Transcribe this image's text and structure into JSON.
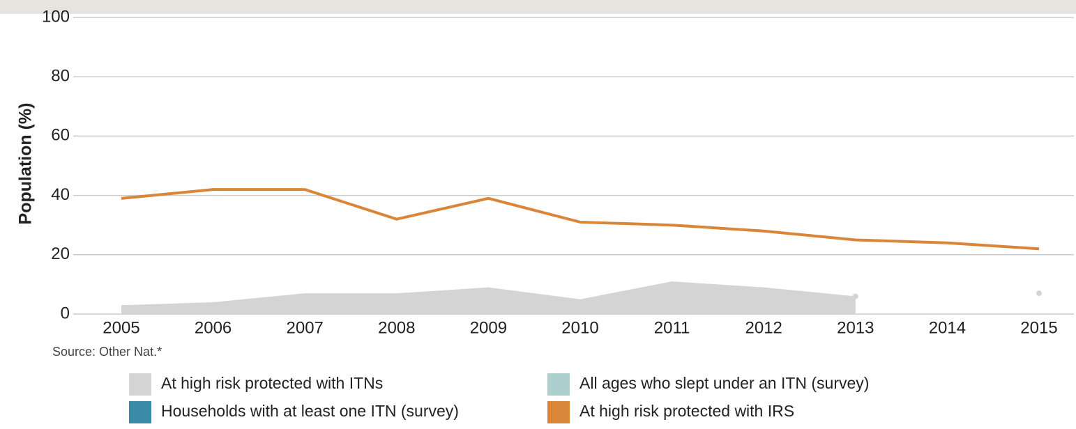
{
  "chart_data": {
    "type": "line",
    "y_label": "Population (%)",
    "source": "Source: Other Nat.*",
    "categories": [
      "2005",
      "2006",
      "2007",
      "2008",
      "2009",
      "2010",
      "2011",
      "2012",
      "2013",
      "2014",
      "2015"
    ],
    "ylim": [
      0,
      100
    ],
    "yticks": [
      0,
      20,
      40,
      60,
      80,
      100
    ],
    "grid": true,
    "series": [
      {
        "name": "At high risk protected with ITNs",
        "color": "#d4d4d4",
        "kind": "area",
        "values": [
          3,
          4,
          7,
          7,
          9,
          5,
          11,
          9,
          6,
          null,
          7
        ]
      },
      {
        "name": "All ages who slept under an ITN (survey)",
        "color": "#adcfd0",
        "kind": "line",
        "values": [
          null,
          null,
          null,
          null,
          null,
          null,
          null,
          null,
          null,
          null,
          null
        ]
      },
      {
        "name": "Households with at least one ITN (survey)",
        "color": "#3b8aa8",
        "kind": "line",
        "values": [
          null,
          null,
          null,
          null,
          null,
          null,
          null,
          null,
          null,
          null,
          null
        ]
      },
      {
        "name": "At high risk protected with IRS",
        "color": "#d9853a",
        "kind": "line",
        "values": [
          39,
          42,
          42,
          32,
          39,
          31,
          30,
          28,
          25,
          24,
          22
        ]
      }
    ]
  }
}
